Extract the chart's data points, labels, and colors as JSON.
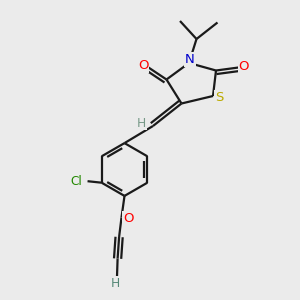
{
  "bg_color": "#ebebeb",
  "bond_color": "#1a1a1a",
  "atom_colors": {
    "O": "#ff0000",
    "N": "#0000cc",
    "S": "#bbaa00",
    "Cl": "#228800",
    "H_exo": "#779988",
    "H_alkyne": "#558877"
  },
  "lw": 1.6,
  "fs": 8.5,
  "figsize": [
    3.0,
    3.0
  ],
  "dpi": 100
}
